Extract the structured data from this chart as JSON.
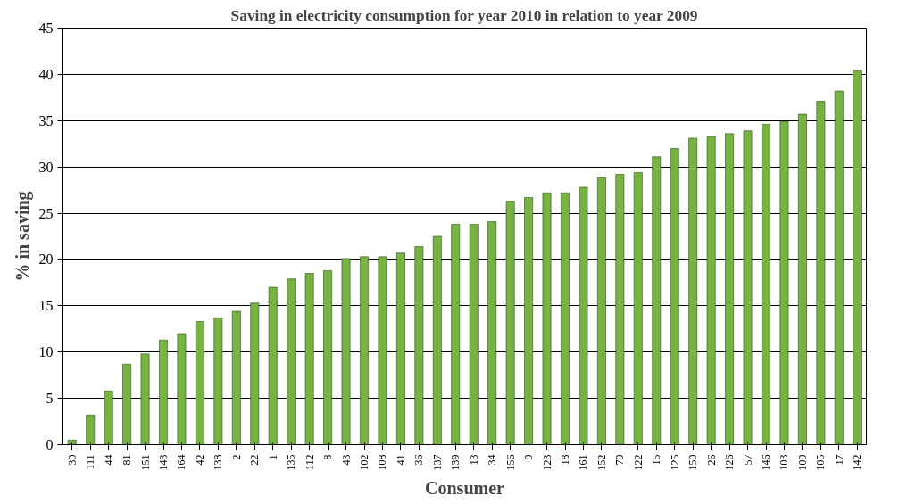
{
  "chart_data": {
    "type": "bar",
    "title": "Saving in electricity consumption for year 2010 in relation to year 2009",
    "xlabel": "Consumer",
    "ylabel": "% in saving",
    "categories": [
      "30",
      "111",
      "44",
      "81",
      "151",
      "143",
      "164",
      "42",
      "138",
      "2",
      "22",
      "1",
      "135",
      "112",
      "8",
      "43",
      "102",
      "108",
      "41",
      "36",
      "137",
      "139",
      "13",
      "34",
      "156",
      "9",
      "123",
      "18",
      "161",
      "152",
      "79",
      "122",
      "15",
      "125",
      "150",
      "26",
      "126",
      "57",
      "146",
      "103",
      "109",
      "105",
      "17",
      "142"
    ],
    "values": [
      0.5,
      3.2,
      5.8,
      8.7,
      9.8,
      11.3,
      12,
      13.3,
      13.7,
      14.4,
      15.3,
      17,
      17.9,
      18.5,
      18.8,
      20.1,
      20.3,
      20.3,
      20.7,
      21.4,
      22.5,
      23.8,
      23.8,
      24.1,
      26.3,
      26.7,
      27.2,
      27.2,
      27.8,
      28.9,
      29.2,
      29.4,
      31.1,
      32,
      33.1,
      33.3,
      33.6,
      33.9,
      34.6,
      34.9,
      35.7,
      37.1,
      38.2,
      40.4
    ],
    "color": "#77b342",
    "ylim": [
      0,
      45
    ],
    "yticks": [
      0,
      5,
      10,
      15,
      20,
      25,
      30,
      35,
      40,
      45
    ],
    "grid": "y"
  }
}
